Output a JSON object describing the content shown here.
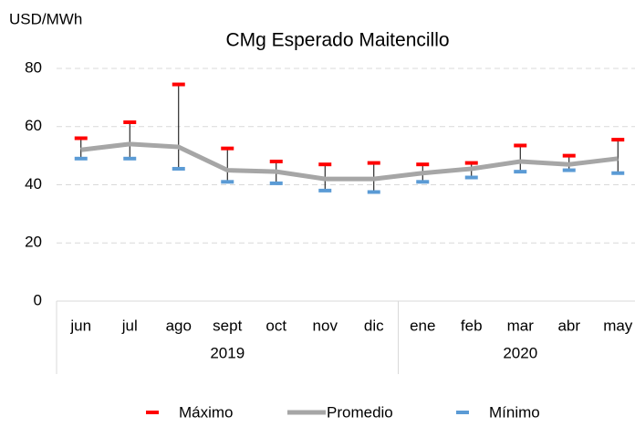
{
  "chart_data": {
    "type": "line",
    "title": "CMg Esperado Maitencillo",
    "y_label": "USD/MWh",
    "categories": [
      "jun",
      "jul",
      "ago",
      "sept",
      "oct",
      "nov",
      "dic",
      "ene",
      "feb",
      "mar",
      "abr",
      "may"
    ],
    "groups": [
      {
        "label": "2019",
        "count": 7
      },
      {
        "label": "2020",
        "count": 5
      }
    ],
    "series": [
      {
        "name": "Máximo",
        "color": "#ff0000",
        "marker": "dash",
        "values": [
          56,
          61.5,
          74.5,
          52.5,
          48,
          47,
          47.5,
          47,
          47.5,
          53.5,
          50,
          55.5
        ]
      },
      {
        "name": "Promedio",
        "color": "#a6a6a6",
        "marker": "line",
        "values": [
          52,
          54,
          53,
          45,
          44.5,
          42,
          42,
          44,
          45.5,
          48,
          47,
          49
        ]
      },
      {
        "name": "Mínimo",
        "color": "#5b9bd5",
        "marker": "dash",
        "values": [
          49,
          49,
          45.5,
          41,
          40.5,
          38,
          37.5,
          41,
          42.5,
          44.5,
          45,
          44
        ]
      }
    ],
    "ylim": [
      0,
      80
    ],
    "yticks": [
      0,
      20,
      40,
      60,
      80
    ],
    "grid": true
  }
}
